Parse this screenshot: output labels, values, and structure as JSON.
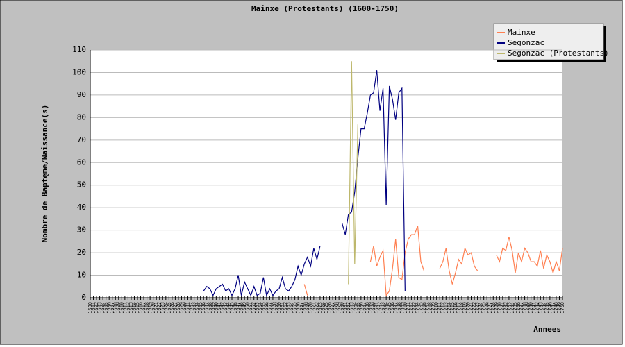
{
  "chart_data": {
    "type": "line",
    "title": "Mainxe (Protestants) (1600-1750)",
    "x_label": "Annees",
    "y_label": "Nombre de Baptęme/Naissance(s)",
    "categories": [
      "1600",
      "1601",
      "1602",
      "1603",
      "1604",
      "1605",
      "1606",
      "1607",
      "1608",
      "1609",
      "1610",
      "1611",
      "1612",
      "1613",
      "1614",
      "1615",
      "1616",
      "1617",
      "1618",
      "1619",
      "1620",
      "1621",
      "1622",
      "1623",
      "1624",
      "1625",
      "1626",
      "1627",
      "1628",
      "1629",
      "1630",
      "1631",
      "1632",
      "1633",
      "1634",
      "1635",
      "1636",
      "1637",
      "1638",
      "1639",
      "1640",
      "1641",
      "1642",
      "1643",
      "1644",
      "1645",
      "1646",
      "1647",
      "1648",
      "1649",
      "1650",
      "1651",
      "1652",
      "1653",
      "1654",
      "1655",
      "1656",
      "1657",
      "1658",
      "1659",
      "1660",
      "1661",
      "1662",
      "1663",
      "1664",
      "1665",
      "1666",
      "1667",
      "1668",
      "1669",
      "1670",
      "1671",
      "1672",
      "1673",
      "1674",
      "1675",
      "1676",
      "1677",
      "1678",
      "1679",
      "1680",
      "1681",
      "1682",
      "1683",
      "1684",
      "1685",
      "1686",
      "1687",
      "1688",
      "1689",
      "1690",
      "1691",
      "1692",
      "1693",
      "1694",
      "1695",
      "1696",
      "1697",
      "1698",
      "1699",
      "1700",
      "1701",
      "1702",
      "1703",
      "1704",
      "1705",
      "1706",
      "1707",
      "1708",
      "1709",
      "1710",
      "1711",
      "1712",
      "1713",
      "1714",
      "1715",
      "1716",
      "1717",
      "1718",
      "1719",
      "1720",
      "1721",
      "1722",
      "1723",
      "1724",
      "1725",
      "1726",
      "1727",
      "1728",
      "1729",
      "1730",
      "1731",
      "1732",
      "1733",
      "1734",
      "1735",
      "1736",
      "1737",
      "1738",
      "1739",
      "1740",
      "1741",
      "1742",
      "1743",
      "1744",
      "1745",
      "1746",
      "1747",
      "1748",
      "1749",
      "1750"
    ],
    "series": [
      {
        "name": "Mainxe",
        "color": "#ff7f50",
        "values": [
          null,
          null,
          null,
          null,
          null,
          null,
          null,
          null,
          null,
          null,
          null,
          null,
          null,
          null,
          null,
          null,
          null,
          null,
          null,
          null,
          null,
          null,
          null,
          null,
          null,
          null,
          null,
          null,
          null,
          null,
          null,
          null,
          null,
          null,
          null,
          null,
          null,
          null,
          null,
          null,
          null,
          null,
          null,
          null,
          null,
          null,
          null,
          null,
          null,
          null,
          null,
          null,
          null,
          null,
          null,
          null,
          null,
          null,
          null,
          null,
          null,
          null,
          null,
          null,
          null,
          null,
          null,
          null,
          6,
          1,
          null,
          null,
          null,
          null,
          null,
          null,
          null,
          null,
          null,
          null,
          null,
          null,
          null,
          null,
          null,
          null,
          null,
          null,
          null,
          16,
          23,
          14,
          18,
          21,
          1,
          3,
          13,
          26,
          9,
          8,
          20,
          26,
          28,
          28,
          32,
          16,
          12,
          null,
          null,
          null,
          null,
          13,
          16,
          22,
          12,
          6,
          11,
          17,
          15,
          22,
          19,
          20,
          14,
          12,
          null,
          null,
          null,
          null,
          null,
          19,
          16,
          22,
          21,
          27,
          21,
          11,
          20,
          16,
          22,
          20,
          16,
          16,
          14,
          21,
          13,
          19,
          16,
          11,
          16,
          12,
          22
        ]
      },
      {
        "name": "Segonzac",
        "color": "#000080",
        "values": [
          null,
          null,
          null,
          null,
          null,
          null,
          null,
          null,
          null,
          null,
          null,
          null,
          null,
          null,
          null,
          null,
          null,
          null,
          null,
          null,
          null,
          null,
          null,
          null,
          null,
          null,
          null,
          null,
          null,
          null,
          null,
          null,
          null,
          null,
          null,
          null,
          3,
          5,
          4,
          1,
          4,
          5,
          6,
          3,
          4,
          1,
          4,
          10,
          1,
          7,
          4,
          1,
          5,
          1,
          2,
          9,
          1,
          4,
          1,
          3,
          4,
          9,
          4,
          3,
          5,
          8,
          14,
          10,
          15,
          18,
          14,
          22,
          17,
          23,
          null,
          null,
          null,
          null,
          null,
          null,
          33,
          28,
          37,
          38,
          47,
          62,
          75,
          75,
          82,
          90,
          91,
          101,
          83,
          93,
          41,
          94,
          88,
          79,
          91,
          93,
          3,
          null,
          null,
          null,
          null,
          null,
          null,
          null,
          null,
          null,
          null,
          null,
          null,
          null,
          null,
          null,
          null,
          null,
          null,
          null,
          null,
          null,
          null,
          null,
          null,
          null,
          null,
          null,
          null,
          null,
          null,
          null,
          null,
          null,
          null,
          null,
          null,
          null,
          null,
          null,
          null,
          null,
          null,
          null,
          null,
          null,
          null,
          null,
          null,
          null,
          null
        ]
      },
      {
        "name": "Segonzac (Protestants)",
        "color": "#bdb76b",
        "values": [
          null,
          null,
          null,
          null,
          null,
          null,
          null,
          null,
          null,
          null,
          null,
          null,
          null,
          null,
          null,
          null,
          null,
          null,
          null,
          null,
          null,
          null,
          null,
          null,
          null,
          null,
          null,
          null,
          null,
          null,
          null,
          null,
          null,
          null,
          null,
          null,
          null,
          null,
          null,
          null,
          null,
          null,
          null,
          null,
          null,
          null,
          null,
          null,
          null,
          null,
          null,
          null,
          null,
          null,
          null,
          null,
          null,
          null,
          null,
          null,
          null,
          null,
          null,
          null,
          null,
          null,
          null,
          null,
          null,
          null,
          null,
          null,
          null,
          null,
          null,
          null,
          null,
          null,
          null,
          null,
          null,
          null,
          6,
          105,
          15,
          77,
          null,
          null,
          null,
          null,
          null,
          null,
          null,
          null,
          null,
          null,
          null,
          null,
          null,
          null,
          null,
          null,
          null,
          null,
          null,
          null,
          null,
          null,
          null,
          null,
          null,
          null,
          null,
          null,
          null,
          null,
          null,
          null,
          null,
          null,
          null,
          null,
          null,
          null,
          null,
          null,
          null,
          null,
          null,
          null,
          null,
          null,
          null,
          null,
          null,
          null,
          null,
          null,
          null,
          null,
          null,
          null,
          null,
          null,
          null,
          null,
          null,
          null,
          null,
          null,
          null
        ]
      }
    ],
    "ylim": [
      0,
      110
    ],
    "yticks": [
      0,
      10,
      20,
      30,
      40,
      50,
      60,
      70,
      80,
      90,
      100,
      110
    ],
    "grid": true,
    "legend": "top-right"
  }
}
